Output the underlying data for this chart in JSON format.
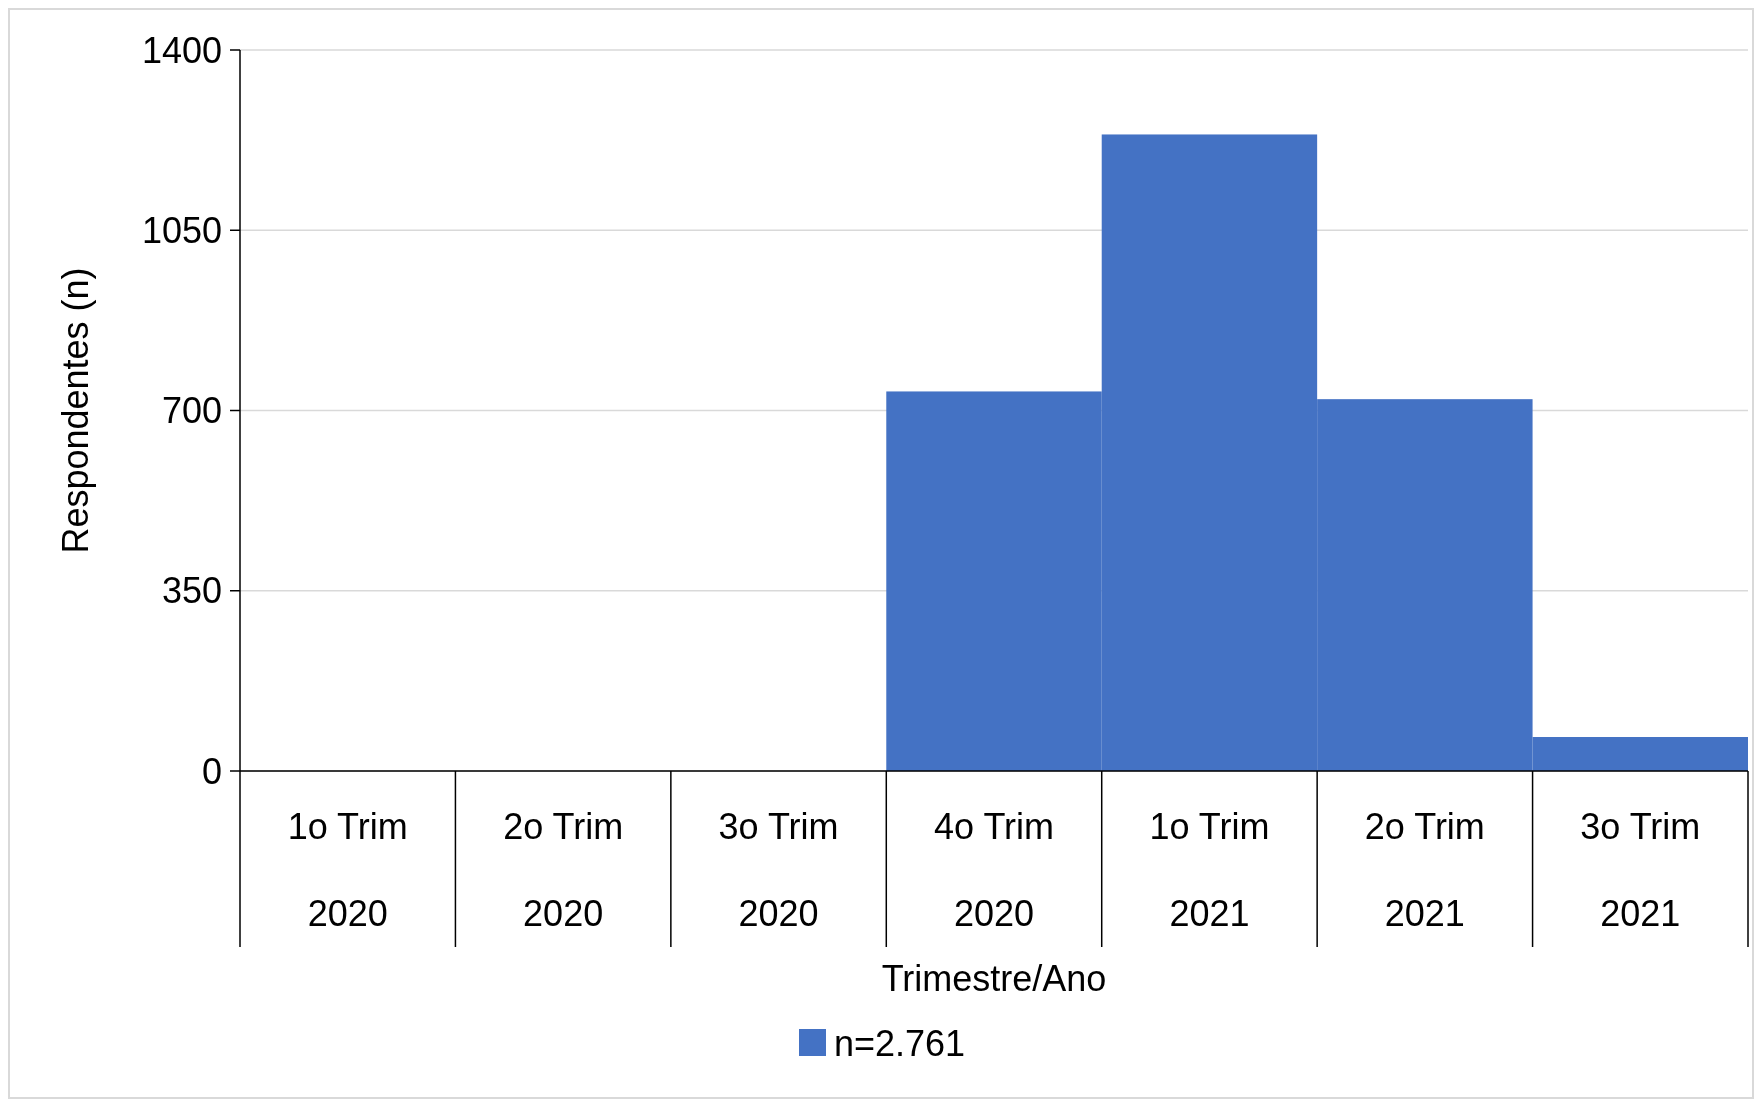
{
  "chart_data": {
    "type": "bar",
    "xlabel": "Trimestre/Ano",
    "ylabel": "Respondentes (n)",
    "categories": [
      "1o Trim 2020",
      "2o Trim 2020",
      "3o Trim 2020",
      "4o Trim 2020",
      "1o Trim 2021",
      "2o Trim 2021",
      "3o Trim 2021"
    ],
    "series": [
      {
        "name": "n=2.761",
        "color": "#4472c4",
        "values": [
          0,
          0,
          0,
          737,
          1236,
          722,
          66
        ]
      }
    ],
    "ylim": [
      0,
      1400
    ],
    "yticks": [
      0,
      350,
      700,
      1050,
      1400
    ],
    "grid": "y",
    "legend": "bottom"
  }
}
